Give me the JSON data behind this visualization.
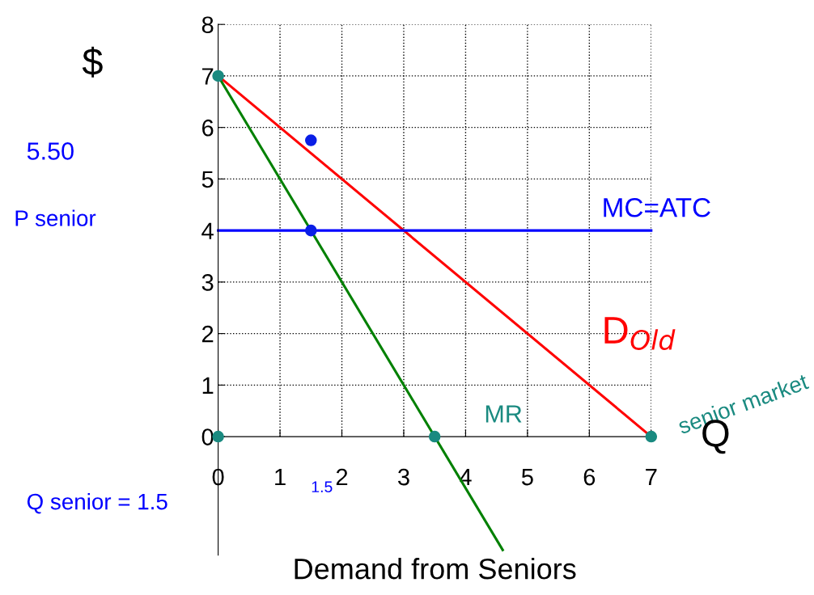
{
  "chart_data": {
    "type": "line",
    "xlabel": "Demand from Seniors",
    "ylabel": "$",
    "xlim": [
      0,
      7
    ],
    "ylim": [
      -2.3,
      8
    ],
    "xticks": [
      0,
      1,
      2,
      3,
      4,
      5,
      6,
      7
    ],
    "yticks": [
      0,
      1,
      2,
      3,
      4,
      5,
      6,
      7,
      8
    ],
    "grid": true,
    "line_style": "solid",
    "marker": "none",
    "series": [
      {
        "color": "#ff0000",
        "x": [
          0,
          7
        ],
        "values": [
          7,
          0
        ]
      },
      {
        "color": "#008000",
        "x": [
          0,
          4.6
        ],
        "values": [
          7,
          -2.2
        ]
      },
      {
        "color": "#0000ff",
        "x": [
          0,
          7
        ],
        "values": [
          4,
          4
        ]
      },
      {
        "type": "scatter",
        "marker": "circle",
        "color": "#1a8a80",
        "x": [
          0,
          0,
          3.5,
          7
        ],
        "values": [
          7,
          0,
          0,
          0
        ]
      },
      {
        "type": "scatter",
        "marker": "circle",
        "color": "#0a1ee6",
        "x": [
          1.5,
          1.5
        ],
        "values": [
          5.75,
          4
        ]
      }
    ],
    "annotations": [
      "D$_{Old}$",
      "MC=ATC",
      "MR",
      "senior market",
      "Q",
      "5.50",
      "P senior",
      "Q senior = 1.5",
      "1.5"
    ]
  }
}
